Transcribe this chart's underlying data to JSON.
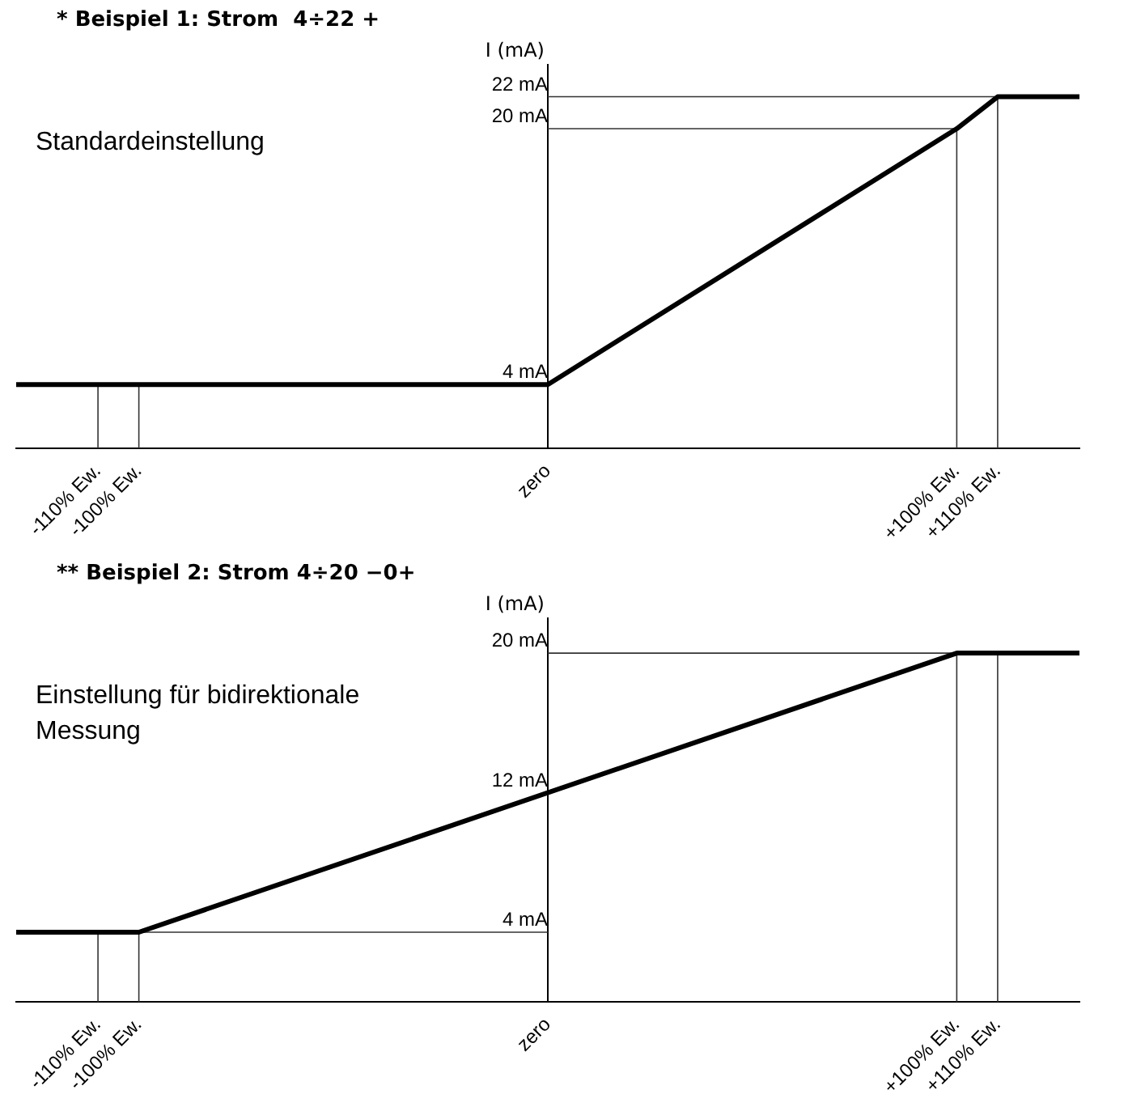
{
  "chart_data": [
    {
      "type": "line",
      "title": "* Beispiel 1: Strom  4÷22 +",
      "ylabel": "I (mA)",
      "annotations": [
        "Standardeinstellung"
      ],
      "x": [
        -130,
        0,
        100,
        110,
        130
      ],
      "series": [
        {
          "color": "#000000",
          "values": [
            4,
            4,
            20,
            22,
            22
          ]
        }
      ],
      "xlim": [
        -130,
        130
      ],
      "xticks": [
        {
          "value": -110,
          "label": "-110% Ew."
        },
        {
          "value": -100,
          "label": "-100% Ew."
        },
        {
          "value": 0,
          "label": "zero"
        },
        {
          "value": 100,
          "label": "+100% Ew."
        },
        {
          "value": 110,
          "label": "+110% Ew."
        }
      ],
      "ylim": [
        0,
        24
      ],
      "yticks": [
        {
          "value": 4,
          "label": "4 mA"
        },
        {
          "value": 20,
          "label": "20 mA"
        },
        {
          "value": 22,
          "label": "22 mA"
        }
      ],
      "ref_lines": [
        {
          "axis": "x",
          "value": -110
        },
        {
          "axis": "x",
          "value": -100
        },
        {
          "axis": "x",
          "value": 100
        },
        {
          "axis": "x",
          "value": 110
        },
        {
          "axis": "y",
          "value": 20
        },
        {
          "axis": "y",
          "value": 22
        }
      ],
      "grid": false,
      "legend": false,
      "marker": "none",
      "line_style": "solid"
    },
    {
      "type": "line",
      "title": "** Beispiel 2: Strom 4÷20 −0+",
      "ylabel": "I (mA)",
      "annotations": [
        "Einstellung für bidirektionale Messung"
      ],
      "x": [
        -130,
        -100,
        100,
        130
      ],
      "series": [
        {
          "color": "#000000",
          "values": [
            4,
            4,
            20,
            20
          ]
        }
      ],
      "xlim": [
        -130,
        130
      ],
      "xticks": [
        {
          "value": -110,
          "label": "-110% Ew."
        },
        {
          "value": -100,
          "label": "-100% Ew."
        },
        {
          "value": 0,
          "label": "zero"
        },
        {
          "value": 100,
          "label": "+100% Ew."
        },
        {
          "value": 110,
          "label": "+110% Ew."
        }
      ],
      "ylim": [
        0,
        22
      ],
      "yticks": [
        {
          "value": 4,
          "label": "4 mA"
        },
        {
          "value": 12,
          "label": "12 mA"
        },
        {
          "value": 20,
          "label": "20 mA"
        }
      ],
      "ref_lines": [
        {
          "axis": "x",
          "value": -110
        },
        {
          "axis": "x",
          "value": -100
        },
        {
          "axis": "x",
          "value": 100
        },
        {
          "axis": "x",
          "value": 110
        },
        {
          "axis": "y",
          "value": 4
        },
        {
          "axis": "y",
          "value": 20
        }
      ],
      "grid": false,
      "legend": false,
      "marker": "none",
      "line_style": "solid"
    }
  ]
}
